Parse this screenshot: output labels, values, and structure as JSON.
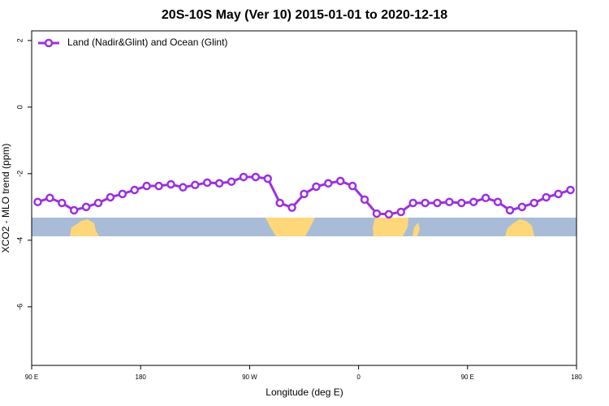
{
  "chart_data": {
    "type": "line",
    "title": "20S-10S May (Ver 10)   2015-01-01 to 2020-12-18",
    "x_label": "Longitude (deg E)",
    "y_label": "XCO2 - MLO trend (ppm)",
    "x": [
      95,
      105,
      115,
      125,
      135,
      145,
      155,
      165,
      175,
      185,
      195,
      205,
      215,
      225,
      235,
      245,
      255,
      265,
      275,
      285,
      295,
      305,
      315,
      325,
      335,
      345,
      355,
      365,
      375,
      385,
      395,
      405,
      415,
      425,
      435,
      445,
      455,
      465,
      475,
      485,
      495,
      505,
      515,
      525,
      535
    ],
    "series": [
      {
        "name": "Land (Nadir&Glint) and Ocean (Glint)",
        "color": "#9b30e0",
        "values": [
          -2.85,
          -2.73,
          -2.88,
          -3.1,
          -3.0,
          -2.88,
          -2.71,
          -2.61,
          -2.49,
          -2.37,
          -2.37,
          -2.32,
          -2.41,
          -2.34,
          -2.27,
          -2.29,
          -2.24,
          -2.1,
          -2.1,
          -2.15,
          -2.88,
          -3.02,
          -2.61,
          -2.39,
          -2.29,
          -2.22,
          -2.37,
          -2.78,
          -3.2,
          -3.22,
          -3.15,
          -2.88,
          -2.88,
          -2.88,
          -2.85,
          -2.88,
          -2.85,
          -2.73,
          -2.85,
          -3.1,
          -3.0,
          -2.88,
          -2.71,
          -2.61,
          -2.49
        ]
      }
    ],
    "xlim": [
      90,
      540
    ],
    "xticks": [
      {
        "value": 90,
        "label": "90 E"
      },
      {
        "value": 180,
        "label": "180"
      },
      {
        "value": 270,
        "label": "90 W"
      },
      {
        "value": 360,
        "label": "0"
      },
      {
        "value": 450,
        "label": "90 E"
      },
      {
        "value": 540,
        "label": "180"
      }
    ],
    "ylim": [
      -7.76,
      2.29
    ],
    "yticks": [
      2,
      0,
      -2,
      -4,
      -6
    ],
    "legend": "top-left"
  }
}
